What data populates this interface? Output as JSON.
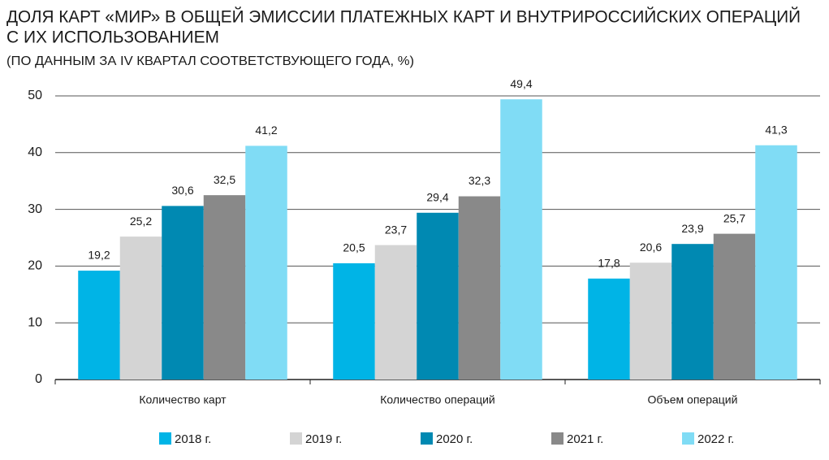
{
  "chart_data": {
    "type": "bar",
    "title": [
      "ДОЛЯ КАРТ «МИР» В ОБЩЕЙ ЭМИССИИ ПЛАТЕЖНЫХ КАРТ И ВНУТРИРОССИЙСКИХ ОПЕРАЦИЙ",
      "С ИХ ИСПОЛЬЗОВАНИЕМ"
    ],
    "subtitle": "(ПО ДАННЫМ ЗА IV КВАРТАЛ СООТВЕТСТВУЮЩЕГО ГОДА, %)",
    "categories": [
      "Количество карт",
      "Количество операций",
      "Объем операций"
    ],
    "series": [
      {
        "name": "2018 г.",
        "color": "#00b4e6",
        "values": [
          19.2,
          20.5,
          17.8
        ],
        "value_labels": [
          "19,2",
          "20,5",
          "17,8"
        ]
      },
      {
        "name": "2019 г.",
        "color": "#d4d4d4",
        "values": [
          25.2,
          23.7,
          20.6
        ],
        "value_labels": [
          "25,2",
          "23,7",
          "20,6"
        ]
      },
      {
        "name": "2020 г.",
        "color": "#0089b2",
        "values": [
          30.6,
          29.4,
          23.9
        ],
        "value_labels": [
          "30,6",
          "29,4",
          "23,9"
        ]
      },
      {
        "name": "2021 г.",
        "color": "#898989",
        "values": [
          32.5,
          32.3,
          25.7
        ],
        "value_labels": [
          "32,5",
          "32,3",
          "25,7"
        ]
      },
      {
        "name": "2022 г.",
        "color": "#80dcf5",
        "values": [
          41.2,
          49.4,
          41.3
        ],
        "value_labels": [
          "41,2",
          "49,4",
          "41,3"
        ]
      }
    ],
    "ylim": [
      0,
      50
    ],
    "yticks": [
      0,
      10,
      20,
      30,
      40,
      50
    ],
    "grid": true,
    "legend": "bottom"
  }
}
